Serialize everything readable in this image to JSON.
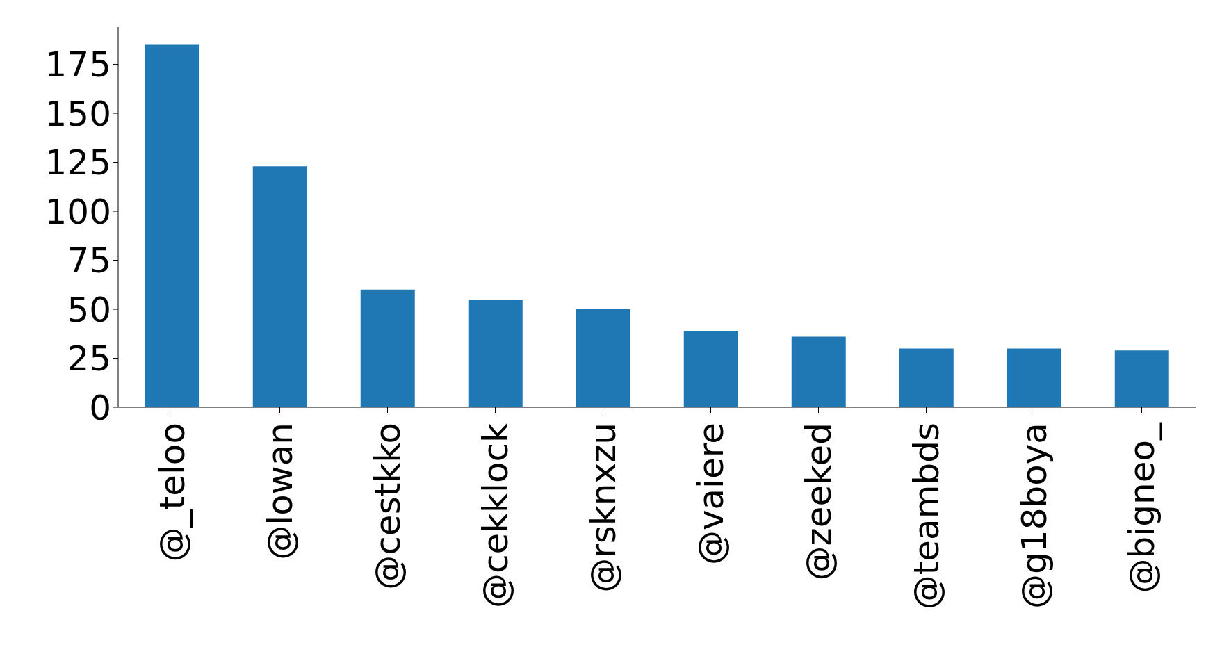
{
  "chart_data": {
    "type": "bar",
    "categories": [
      "@_teloo",
      "@lowan",
      "@cestkko",
      "@cekklock",
      "@rsknxzu",
      "@vaiere",
      "@zeeked",
      "@teambds",
      "@g18boya",
      "@bigneo_"
    ],
    "values": [
      185,
      123,
      60,
      55,
      50,
      39,
      36,
      30,
      30,
      29
    ],
    "color": "#1f77b4",
    "ylim": [
      0,
      194
    ],
    "yticks": [
      0,
      25,
      50,
      75,
      100,
      125,
      150,
      175
    ],
    "grid": false,
    "legend": false
  }
}
